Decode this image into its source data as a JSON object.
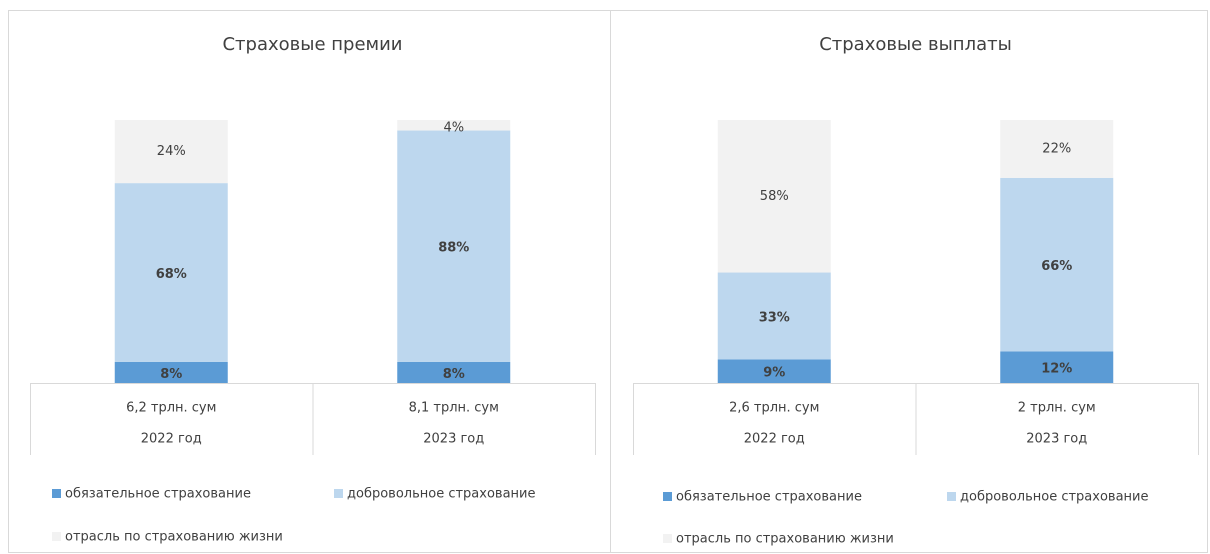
{
  "chart_data": [
    {
      "type": "stacked_bar",
      "title": "Страховые премии",
      "categories": [
        [
          "6,2 трлн. сум",
          "2022 год"
        ],
        [
          "8,1 трлн. сум",
          "2023 год"
        ]
      ],
      "ylim": [
        0,
        100
      ],
      "series": [
        {
          "name": "обязательное страхование",
          "color": "#5b9bd5",
          "values": [
            8,
            8
          ],
          "value_labels": [
            "8%",
            "8%"
          ]
        },
        {
          "name": "добровольное страхование",
          "color": "#bdd7ee",
          "values": [
            68,
            88
          ],
          "value_labels": [
            "68%",
            "88%"
          ]
        },
        {
          "name": "отрасль по страхованию жизни",
          "color": "#f2f2f2",
          "values": [
            24,
            4
          ],
          "value_labels": [
            "24%",
            "4%"
          ]
        }
      ]
    },
    {
      "type": "stacked_bar",
      "title": "Страховые  выплаты",
      "categories": [
        [
          "2,6 трлн. сум",
          "2022 год"
        ],
        [
          "2 трлн. сум",
          "2023 год"
        ]
      ],
      "ylim": [
        0,
        100
      ],
      "series": [
        {
          "name": "обязательное страхование",
          "color": "#5b9bd5",
          "values": [
            9,
            12
          ],
          "value_labels": [
            "9%",
            "12%"
          ]
        },
        {
          "name": "добровольное страхование",
          "color": "#bdd7ee",
          "values": [
            33,
            66
          ],
          "value_labels": [
            "33%",
            "66%"
          ]
        },
        {
          "name": "отрасль по страхованию жизни",
          "color": "#f2f2f2",
          "values": [
            58,
            22
          ],
          "value_labels": [
            "58%",
            "22%"
          ]
        }
      ]
    }
  ]
}
